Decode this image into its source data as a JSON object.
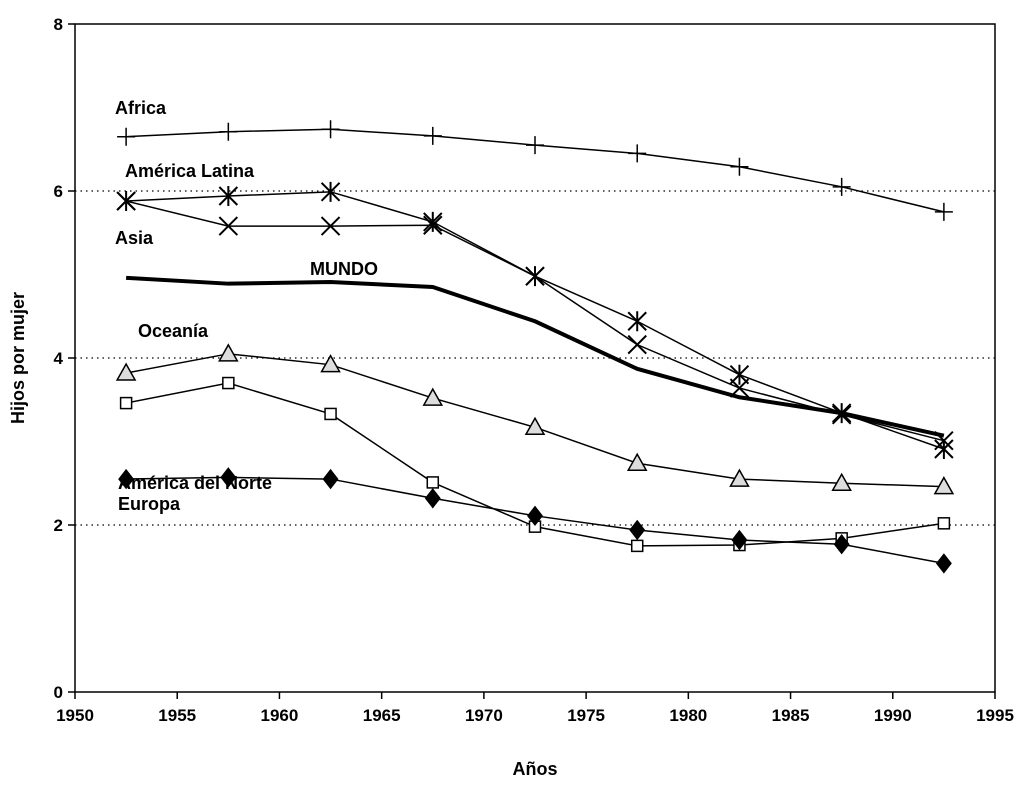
{
  "chart_data": {
    "type": "line",
    "xlabel": "Años",
    "ylabel": "Hijos por mujer",
    "x": [
      1952.5,
      1957.5,
      1962.5,
      1967.5,
      1972.5,
      1977.5,
      1982.5,
      1987.5,
      1992.5
    ],
    "xlim": [
      1950,
      1995
    ],
    "xticks": [
      1950,
      1955,
      1960,
      1965,
      1970,
      1975,
      1980,
      1985,
      1990,
      1995
    ],
    "ylim": [
      0,
      8
    ],
    "yticks": [
      0,
      2,
      4,
      6,
      8
    ],
    "grid": "dotted",
    "series": [
      {
        "name": "Africa",
        "color": "#000000",
        "marker": "plus",
        "values": [
          6.65,
          6.71,
          6.74,
          6.66,
          6.55,
          6.45,
          6.29,
          6.05,
          5.75
        ]
      },
      {
        "name": "América Latina",
        "color": "#000000",
        "marker": "asterisk",
        "values": [
          5.88,
          5.94,
          5.99,
          5.63,
          4.98,
          4.44,
          3.8,
          3.34,
          2.91
        ]
      },
      {
        "name": "Asia",
        "color": "#000000",
        "marker": "x",
        "values": [
          5.88,
          5.58,
          5.58,
          5.59,
          4.98,
          4.16,
          3.64,
          3.32,
          3.01
        ]
      },
      {
        "name": "MUNDO",
        "color": "#000000",
        "marker": "none",
        "line_width": 4,
        "values": [
          4.96,
          4.89,
          4.91,
          4.85,
          4.44,
          3.87,
          3.53,
          3.34,
          3.07
        ]
      },
      {
        "name": "Oceanía",
        "color": "#000000",
        "marker": "triangle",
        "values": [
          3.82,
          4.05,
          3.92,
          3.52,
          3.17,
          2.74,
          2.55,
          2.5,
          2.46
        ]
      },
      {
        "name": "América del Norte",
        "color": "#000000",
        "marker": "square",
        "values": [
          3.46,
          3.7,
          3.33,
          2.51,
          1.98,
          1.75,
          1.76,
          1.84,
          2.02
        ]
      },
      {
        "name": "Europa",
        "color": "#000000",
        "marker": "diamond",
        "values": [
          2.55,
          2.57,
          2.55,
          2.32,
          2.11,
          1.94,
          1.82,
          1.77,
          1.54
        ]
      }
    ]
  }
}
